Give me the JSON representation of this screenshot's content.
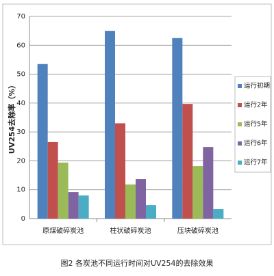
{
  "chart_data": {
    "type": "bar",
    "caption": "图2 各炭池不同运行时间对UV254的去除效果",
    "y_label": "UV254去除率（%）",
    "categories": [
      "原煤破碎炭池",
      "柱状破碎炭池",
      "压块破碎炭池"
    ],
    "series": [
      {
        "name": "运行初期",
        "color": "#4f81bd",
        "values": [
          53.5,
          65,
          62.5
        ]
      },
      {
        "name": "运行2年",
        "color": "#c0504d",
        "values": [
          26.5,
          33,
          39.7
        ]
      },
      {
        "name": "运行5年",
        "color": "#9bbb59",
        "values": [
          19.4,
          11.8,
          18.2
        ]
      },
      {
        "name": "运行6年",
        "color": "#8064a2",
        "values": [
          9.2,
          13.7,
          24.8
        ]
      },
      {
        "name": "运行7年",
        "color": "#4bacc6",
        "values": [
          8,
          4.7,
          3.3
        ]
      }
    ],
    "ylim": [
      0,
      70
    ],
    "yticks": [
      0,
      10,
      20,
      30,
      40,
      50,
      60,
      70
    ],
    "grid": true,
    "legend": "right"
  }
}
